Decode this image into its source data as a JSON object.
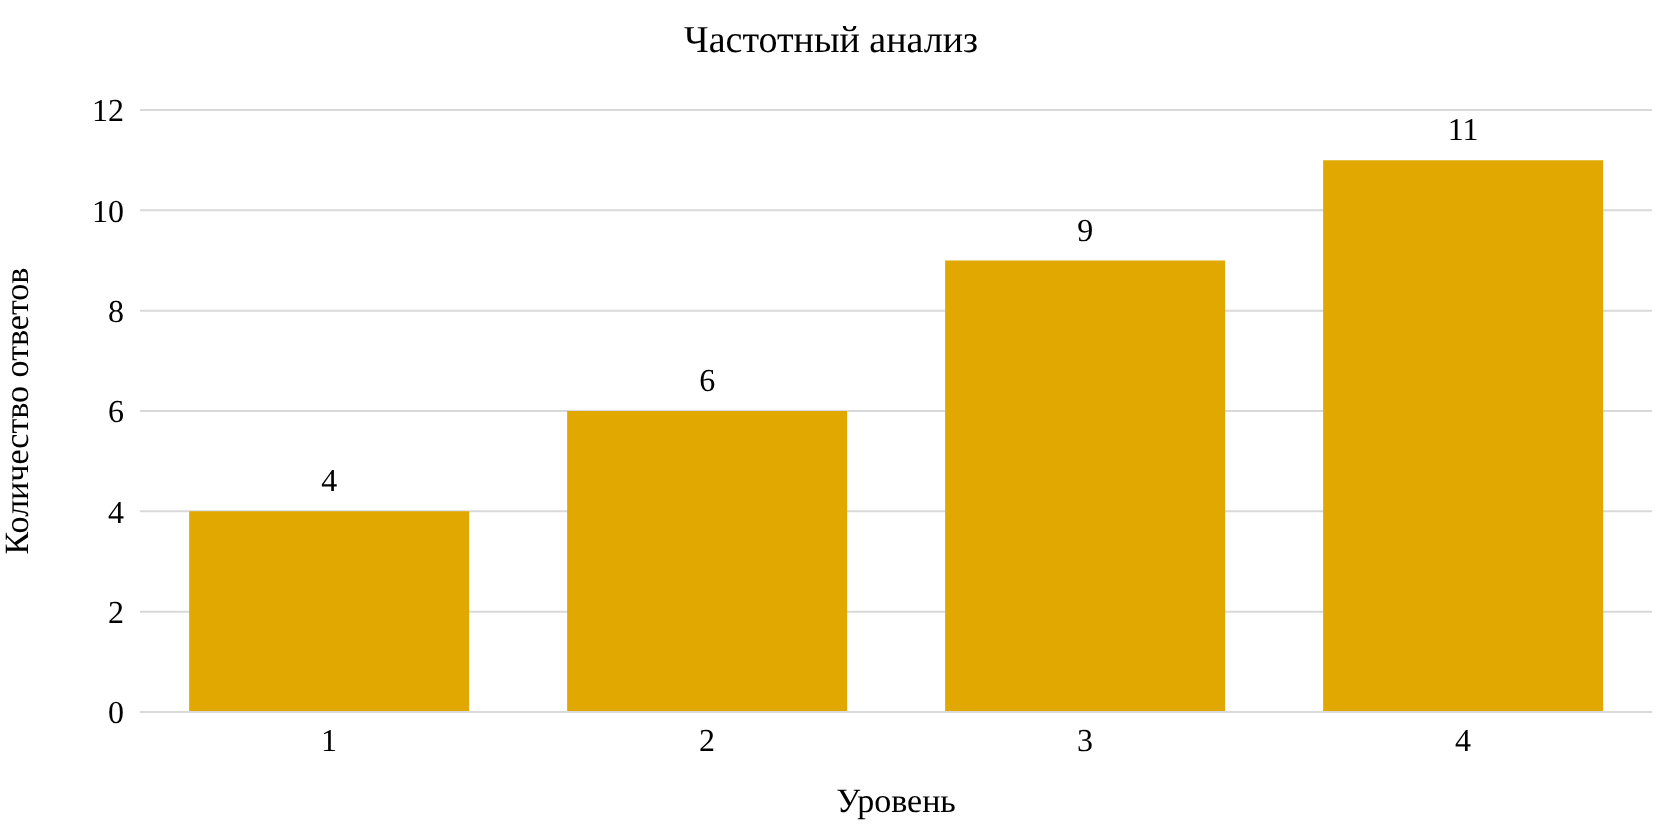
{
  "chart_data": {
    "type": "bar",
    "title": "Частотный анализ",
    "xlabel": "Уровень",
    "ylabel": "Количество ответов",
    "categories": [
      "1",
      "2",
      "3",
      "4"
    ],
    "values": [
      4,
      6,
      9,
      11
    ],
    "color": "#e0a800",
    "ylim": [
      0,
      12
    ],
    "yticks": [
      0,
      2,
      4,
      6,
      8,
      10,
      12
    ],
    "grid": "y",
    "data_labels": true
  }
}
